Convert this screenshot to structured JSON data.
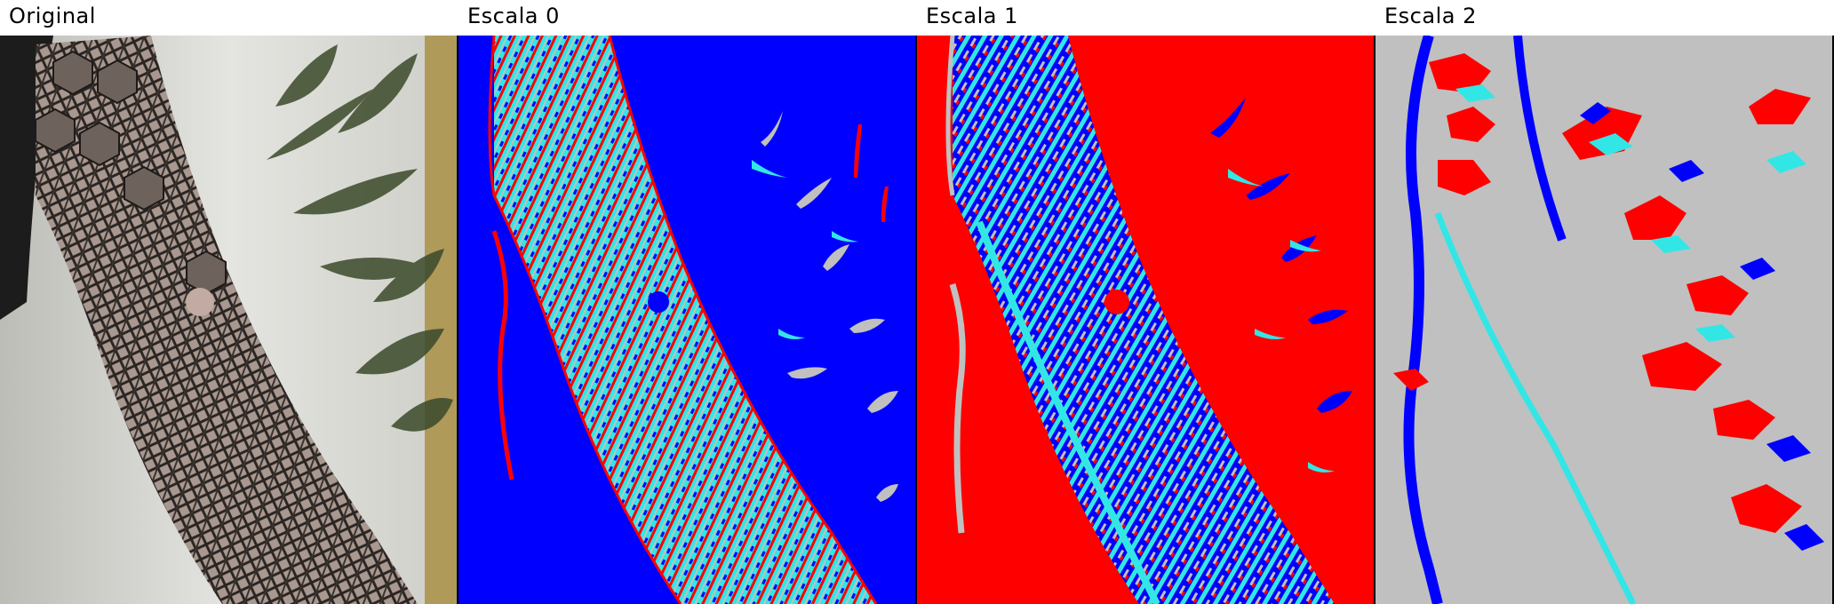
{
  "panels": [
    {
      "title": "Original"
    },
    {
      "title": "Escala 0"
    },
    {
      "title": "Escala 1"
    },
    {
      "title": "Escala 2"
    }
  ],
  "colors": {
    "blue": "#0000ff",
    "red": "#ff0000",
    "cyan": "#33e6e6",
    "gray": "#c0c0c0",
    "skin": "#c9b8ad",
    "wall": "#d9d9d5"
  }
}
